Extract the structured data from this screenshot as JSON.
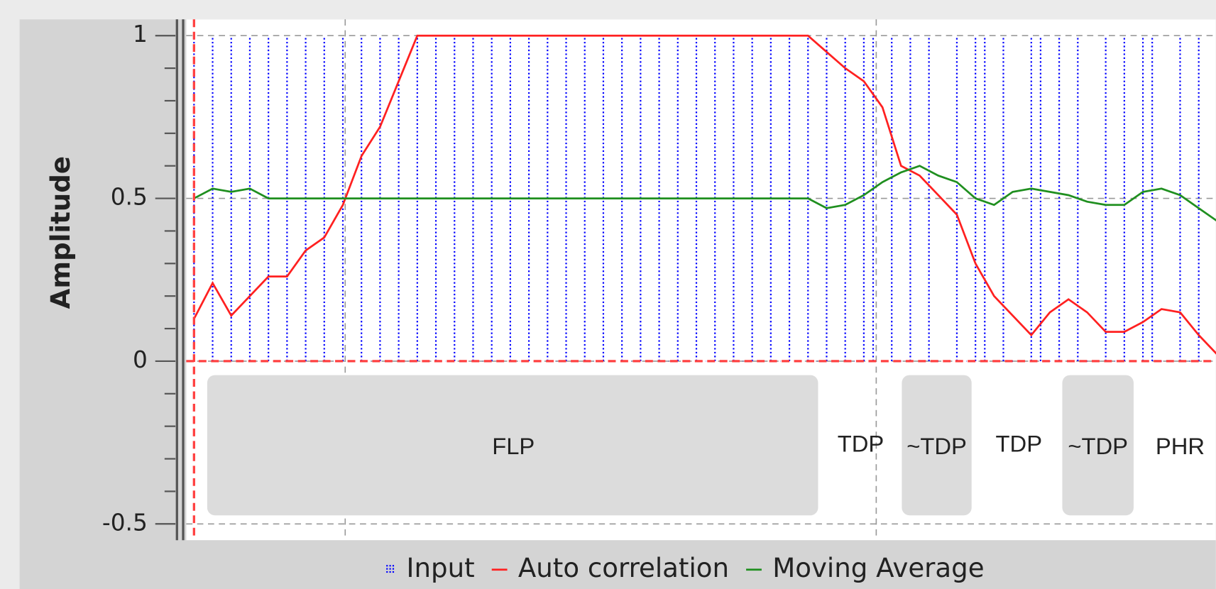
{
  "chart_data": {
    "type": "line",
    "ylabel": "Amplitude",
    "ylim": [
      -0.55,
      1.05
    ],
    "yticks": [
      -0.5,
      0,
      0.5,
      1
    ],
    "grid": true,
    "legend": "bottom",
    "annotations": [
      "FLP",
      "TDP",
      "~TDP",
      "TDP",
      "~TDP",
      "PHR"
    ],
    "series": [
      {
        "name": "Input",
        "color": "#0000ff",
        "style": "stem",
        "values": [
          1,
          0,
          1,
          0,
          1,
          0,
          1,
          0,
          1,
          0,
          1,
          0,
          1,
          0,
          1,
          0,
          1,
          0,
          1,
          0,
          1,
          0,
          1,
          0,
          1,
          0,
          1,
          0,
          1,
          0,
          1,
          0,
          1,
          0,
          1,
          0,
          1,
          0,
          1,
          0,
          1,
          0,
          1,
          0,
          1,
          0,
          1,
          0,
          1,
          0,
          1,
          0,
          1,
          0,
          1,
          0,
          1,
          0,
          1,
          0,
          1,
          0,
          1,
          0,
          1,
          0,
          1,
          0,
          1,
          0,
          1,
          0,
          1,
          1,
          0,
          1,
          0,
          1,
          0,
          1,
          0,
          0,
          1,
          0,
          1,
          1,
          0,
          1,
          0,
          0,
          1,
          1,
          0,
          1,
          0,
          1,
          0,
          0,
          1,
          0,
          1,
          0,
          1,
          1,
          0,
          0,
          1,
          0,
          1,
          0,
          1
        ]
      },
      {
        "name": "Auto correlation",
        "color": "#ff2020",
        "style": "line",
        "values": [
          0.13,
          0.24,
          0.14,
          0.2,
          0.26,
          0.26,
          0.34,
          0.38,
          0.48,
          0.63,
          0.72,
          0.86,
          1,
          1,
          1,
          1,
          1,
          1,
          1,
          1,
          1,
          1,
          1,
          1,
          1,
          1,
          1,
          1,
          1,
          1,
          1,
          1,
          1,
          1,
          0.95,
          0.9,
          0.86,
          0.78,
          0.6,
          0.57,
          0.51,
          0.45,
          0.3,
          0.2,
          0.14,
          0.08,
          0.15,
          0.19,
          0.15,
          0.09,
          0.09,
          0.12,
          0.16,
          0.15,
          0.08,
          0.02
        ]
      },
      {
        "name": "Moving Average",
        "color": "#1f8f1f",
        "style": "line",
        "values": [
          0.5,
          0.53,
          0.52,
          0.53,
          0.5,
          0.5,
          0.5,
          0.5,
          0.5,
          0.5,
          0.5,
          0.5,
          0.5,
          0.5,
          0.5,
          0.5,
          0.5,
          0.5,
          0.5,
          0.5,
          0.5,
          0.5,
          0.5,
          0.5,
          0.5,
          0.5,
          0.5,
          0.5,
          0.5,
          0.5,
          0.5,
          0.5,
          0.5,
          0.5,
          0.47,
          0.48,
          0.51,
          0.55,
          0.58,
          0.6,
          0.57,
          0.55,
          0.5,
          0.48,
          0.52,
          0.53,
          0.52,
          0.51,
          0.49,
          0.48,
          0.48,
          0.52,
          0.53,
          0.51,
          0.47,
          0.43
        ]
      }
    ]
  }
}
